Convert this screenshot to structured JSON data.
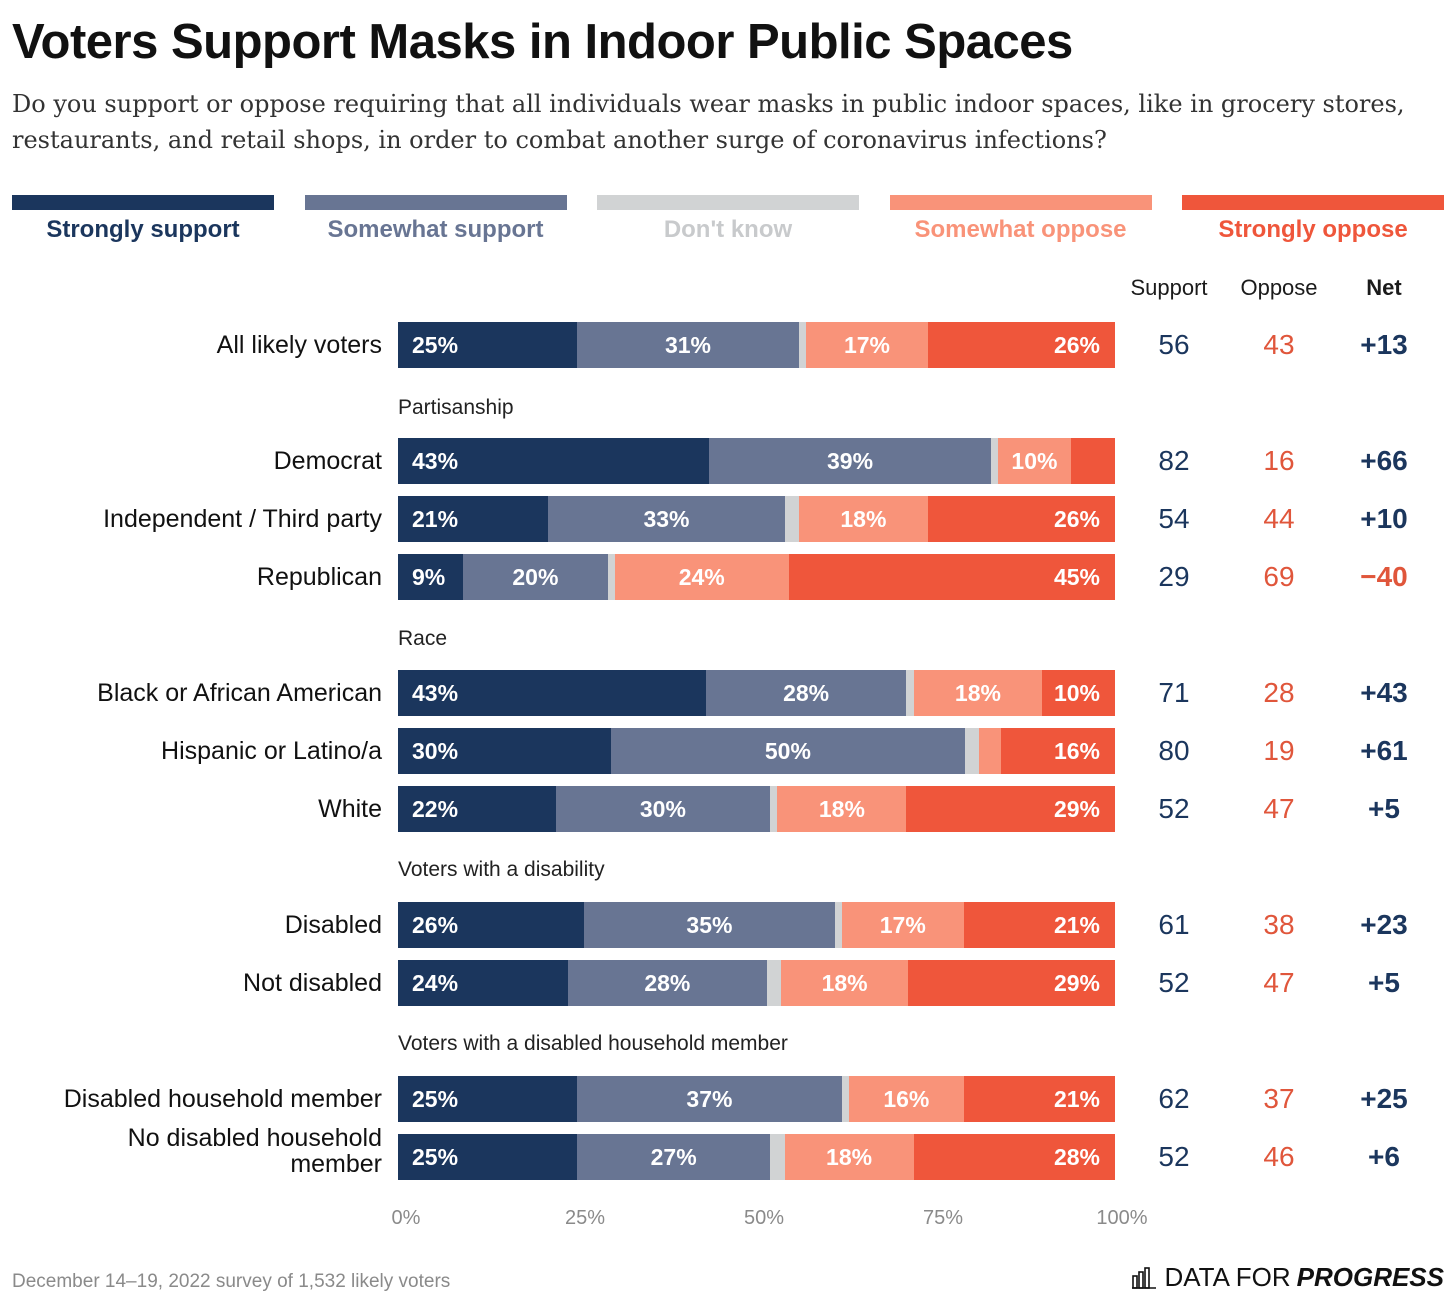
{
  "title": "Voters Support Masks in Indoor Public Spaces",
  "subtitle": "Do you support or oppose requiring that all individuals wear masks in public indoor spaces, like in grocery stores, restaurants, and retail shops, in order to combat another surge of coronavirus infections?",
  "footer": "December 14–19, 2022 survey of 1,532 likely voters",
  "brand": {
    "prefix": "DATA FOR",
    "emphasis": "PROGRESS"
  },
  "colors": {
    "strongly_support": "#1b365d",
    "somewhat_support": "#687593",
    "dont_know": "#d1d3d4",
    "somewhat_oppose": "#f99379",
    "strongly_oppose": "#ef563b",
    "support_text": "#1b365d",
    "oppose_text": "#e0563b"
  },
  "columns": {
    "support": "Support",
    "oppose": "Oppose",
    "net": "Net"
  },
  "chart_data": {
    "type": "bar",
    "orientation": "horizontal",
    "stacked": true,
    "xlim": [
      0,
      100
    ],
    "x_ticks": [
      "0%",
      "25%",
      "50%",
      "75%",
      "100%"
    ],
    "legend_position": "top",
    "series": [
      {
        "key": "strongly_support",
        "name": "Strongly support"
      },
      {
        "key": "somewhat_support",
        "name": "Somewhat support"
      },
      {
        "key": "dont_know",
        "name": "Don't know"
      },
      {
        "key": "somewhat_oppose",
        "name": "Somewhat oppose"
      },
      {
        "key": "strongly_oppose",
        "name": "Strongly oppose"
      }
    ],
    "rows": [
      {
        "label": "All likely voters",
        "group": "",
        "values": [
          25,
          31,
          1,
          17,
          26
        ],
        "labels": [
          "25%",
          "31%",
          "",
          "17%",
          "26%"
        ],
        "support": "56",
        "oppose": "43",
        "net": "+13"
      },
      {
        "label": "Democrat",
        "group": "Partisanship",
        "values": [
          43,
          39,
          1,
          10,
          6
        ],
        "labels": [
          "43%",
          "39%",
          "",
          "10%",
          ""
        ],
        "support": "82",
        "oppose": "16",
        "net": "+66"
      },
      {
        "label": "Independent / Third party",
        "group": "Partisanship",
        "values": [
          21,
          33,
          2,
          18,
          26
        ],
        "labels": [
          "21%",
          "33%",
          "",
          "18%",
          "26%"
        ],
        "support": "54",
        "oppose": "44",
        "net": "+10"
      },
      {
        "label": "Republican",
        "group": "Partisanship",
        "values": [
          9,
          20,
          1,
          24,
          45
        ],
        "labels": [
          "9%",
          "20%",
          "",
          "24%",
          "45%"
        ],
        "support": "29",
        "oppose": "69",
        "net": "−40"
      },
      {
        "label": "Black or African American",
        "group": "Race",
        "values": [
          43,
          28,
          1,
          18,
          10
        ],
        "labels": [
          "43%",
          "28%",
          "",
          "18%",
          "10%"
        ],
        "support": "71",
        "oppose": "28",
        "net": "+43"
      },
      {
        "label": "Hispanic or Latino/a",
        "group": "Race",
        "values": [
          30,
          50,
          2,
          3,
          16
        ],
        "labels": [
          "30%",
          "50%",
          "",
          "",
          "16%"
        ],
        "support": "80",
        "oppose": "19",
        "net": "+61"
      },
      {
        "label": "White",
        "group": "Race",
        "values": [
          22,
          30,
          1,
          18,
          29
        ],
        "labels": [
          "22%",
          "30%",
          "",
          "18%",
          "29%"
        ],
        "support": "52",
        "oppose": "47",
        "net": "+5"
      },
      {
        "label": "Disabled",
        "group": "Voters with a disability",
        "values": [
          26,
          35,
          1,
          17,
          21
        ],
        "labels": [
          "26%",
          "35%",
          "",
          "17%",
          "21%"
        ],
        "support": "61",
        "oppose": "38",
        "net": "+23"
      },
      {
        "label": "Not disabled",
        "group": "Voters with a disability",
        "values": [
          24,
          28,
          2,
          18,
          29
        ],
        "labels": [
          "24%",
          "28%",
          "",
          "18%",
          "29%"
        ],
        "support": "52",
        "oppose": "47",
        "net": "+5"
      },
      {
        "label": "Disabled household member",
        "group": "Voters with a disabled household member",
        "values": [
          25,
          37,
          1,
          16,
          21
        ],
        "labels": [
          "25%",
          "37%",
          "",
          "16%",
          "21%"
        ],
        "support": "62",
        "oppose": "37",
        "net": "+25"
      },
      {
        "label": "No disabled household member",
        "label_lines": [
          "No disabled household",
          "member"
        ],
        "group": "Voters with a disabled household member",
        "values": [
          25,
          27,
          2,
          18,
          28
        ],
        "labels": [
          "25%",
          "27%",
          "",
          "18%",
          "28%"
        ],
        "support": "52",
        "oppose": "46",
        "net": "+6"
      }
    ]
  }
}
